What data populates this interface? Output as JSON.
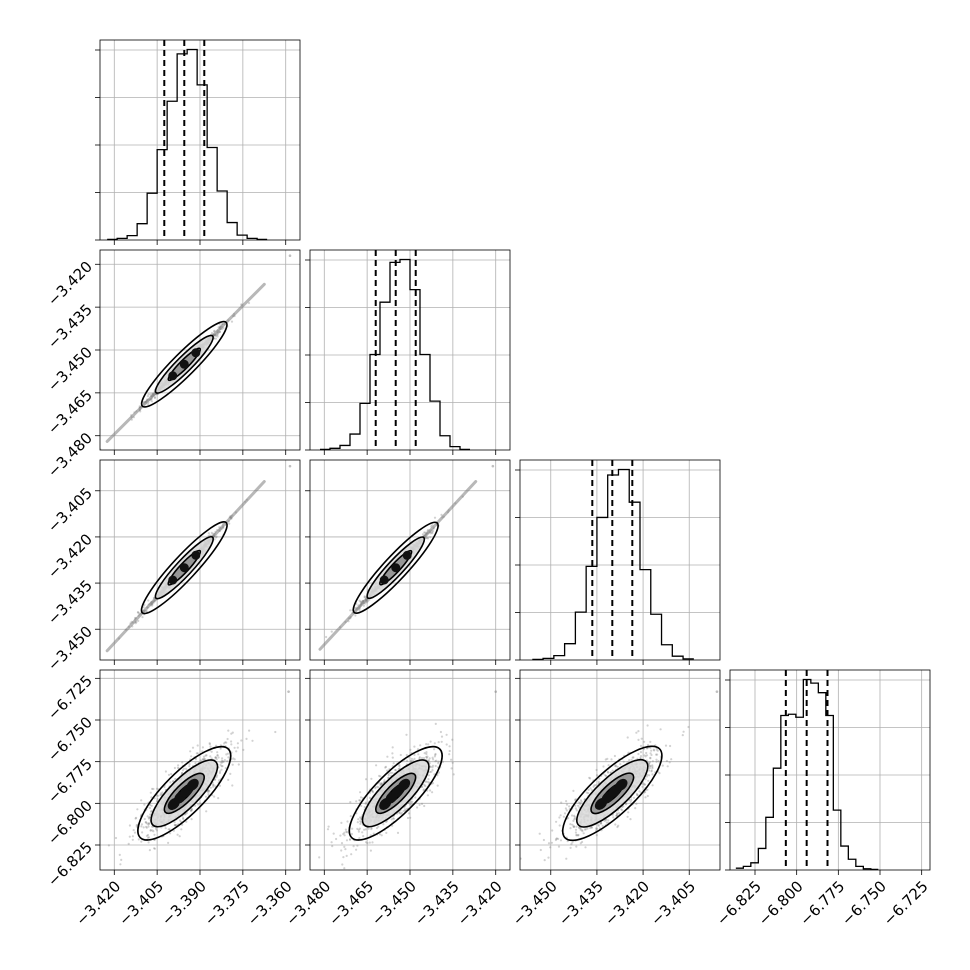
{
  "chart_data": {
    "type": "corner",
    "grid": true,
    "parameters": [
      {
        "index": 0,
        "range": [
          -3.425,
          -3.355
        ],
        "ticks": [
          -3.42,
          -3.405,
          -3.39,
          -3.375,
          -3.36
        ],
        "tick_labels": [
          "−3.420",
          "−3.405",
          "−3.390",
          "−3.375",
          "−3.360"
        ],
        "quantiles": [
          -3.4025,
          -3.3955,
          -3.3885
        ]
      },
      {
        "index": 1,
        "range": [
          -3.485,
          -3.415
        ],
        "ticks": [
          -3.48,
          -3.465,
          -3.45,
          -3.435,
          -3.42
        ],
        "tick_labels": [
          "−3.480",
          "−3.465",
          "−3.450",
          "−3.435",
          "−3.420"
        ],
        "quantiles": [
          -3.462,
          -3.455,
          -3.448
        ]
      },
      {
        "index": 2,
        "range": [
          -3.46,
          -3.395
        ],
        "ticks": [
          -3.45,
          -3.435,
          -3.42,
          -3.405
        ],
        "tick_labels": [
          "−3.450",
          "−3.435",
          "−3.420",
          "−3.405"
        ],
        "quantiles": [
          -3.4365,
          -3.43,
          -3.4235
        ]
      },
      {
        "index": 3,
        "range": [
          -6.84,
          -6.72
        ],
        "ticks": [
          -6.825,
          -6.8,
          -6.775,
          -6.75,
          -6.725
        ],
        "tick_labels": [
          "−6.825",
          "−6.800",
          "−6.775",
          "−6.750",
          "−6.725"
        ],
        "quantiles": [
          -6.8065,
          -6.794,
          -6.7815
        ]
      }
    ],
    "histograms": [
      {
        "param": 0,
        "bin_edges": [
          -3.4225,
          -3.419,
          -3.4155,
          -3.412,
          -3.4085,
          -3.405,
          -3.4015,
          -3.398,
          -3.3945,
          -3.391,
          -3.3875,
          -3.384,
          -3.3805,
          -3.377,
          -3.3735,
          -3.37,
          -3.3665
        ],
        "counts": [
          1,
          3,
          8,
          30,
          86,
          166,
          255,
          342,
          350,
          285,
          170,
          90,
          32,
          9,
          3,
          1
        ]
      },
      {
        "param": 1,
        "bin_edges": [
          -3.4815,
          -3.478,
          -3.4745,
          -3.471,
          -3.4675,
          -3.464,
          -3.4605,
          -3.457,
          -3.4535,
          -3.45,
          -3.4465,
          -3.443,
          -3.4395,
          -3.436,
          -3.4325,
          -3.429
        ],
        "counts": [
          1,
          3,
          8,
          28,
          82,
          168,
          260,
          330,
          335,
          282,
          168,
          86,
          25,
          6,
          1
        ]
      },
      {
        "param": 2,
        "bin_edges": [
          -3.456,
          -3.4525,
          -3.449,
          -3.4455,
          -3.442,
          -3.4385,
          -3.435,
          -3.4315,
          -3.428,
          -3.4245,
          -3.421,
          -3.4175,
          -3.414,
          -3.4105,
          -3.407,
          -3.4035
        ],
        "counts": [
          1,
          3,
          8,
          30,
          88,
          172,
          262,
          340,
          350,
          290,
          166,
          84,
          28,
          7,
          2
        ]
      },
      {
        "param": 3,
        "bin_edges": [
          -6.8365,
          -6.832,
          -6.8275,
          -6.823,
          -6.8185,
          -6.814,
          -6.8095,
          -6.805,
          -6.8005,
          -6.796,
          -6.7915,
          -6.787,
          -6.7825,
          -6.778,
          -6.7735,
          -6.769,
          -6.7645,
          -6.76,
          -6.7555,
          -6.751
        ],
        "counts": [
          3,
          6,
          12,
          36,
          88,
          170,
          258,
          260,
          255,
          318,
          312,
          296,
          258,
          100,
          40,
          18,
          6,
          2,
          1
        ]
      }
    ],
    "pairs": [
      {
        "x_param": 0,
        "y_param": 1,
        "center": [
          -3.3955,
          -3.455
        ],
        "sigma": [
          0.0045,
          0.0045
        ],
        "correlation": 0.998,
        "tail_start": [
          -3.4225,
          -3.482
        ],
        "tail_end": [
          -3.3675,
          -3.427
        ],
        "outlier": [
          -3.3585,
          -3.417
        ]
      },
      {
        "x_param": 0,
        "y_param": 2,
        "center": [
          -3.3955,
          -3.43
        ],
        "sigma": [
          0.0045,
          0.0045
        ],
        "correlation": 0.995,
        "tail_start": [
          -3.4225,
          -3.457
        ],
        "tail_end": [
          -3.3675,
          -3.402
        ],
        "outlier": [
          -3.3585,
          -3.397
        ]
      },
      {
        "x_param": 1,
        "y_param": 2,
        "center": [
          -3.455,
          -3.43
        ],
        "sigma": [
          0.0045,
          0.0045
        ],
        "correlation": 0.998,
        "tail_start": [
          -3.4815,
          -3.4565
        ],
        "tail_end": [
          -3.427,
          -3.402
        ],
        "outlier": [
          -3.421,
          -3.397
        ]
      },
      {
        "x_param": 0,
        "y_param": 3,
        "center": [
          -3.3955,
          -6.794
        ],
        "sigma": [
          0.0045,
          0.0085
        ],
        "correlation": 0.87,
        "tail_start": [
          -3.42,
          -6.835
        ],
        "tail_end": [
          -3.365,
          -6.74
        ],
        "outlier": [
          -3.359,
          -6.733
        ]
      },
      {
        "x_param": 1,
        "y_param": 3,
        "center": [
          -3.455,
          -6.794
        ],
        "sigma": [
          0.0045,
          0.0085
        ],
        "correlation": 0.87,
        "tail_start": [
          -3.48,
          -6.835
        ],
        "tail_end": [
          -3.425,
          -6.74
        ],
        "outlier": [
          -3.42,
          -6.733
        ]
      },
      {
        "x_param": 2,
        "y_param": 3,
        "center": [
          -3.43,
          -6.794
        ],
        "sigma": [
          0.0045,
          0.0085
        ],
        "correlation": 0.87,
        "tail_start": [
          -3.455,
          -6.835
        ],
        "tail_end": [
          -3.4,
          -6.74
        ],
        "outlier": [
          -3.396,
          -6.733
        ]
      }
    ],
    "colors": {
      "axis": "#000000",
      "grid": "#b0b0b0",
      "samples": "#7f7f7f",
      "contour_fill_outer": "#d9d9d9",
      "contour_fill_inner": "#8c8c8c",
      "center_density": "#111111"
    }
  }
}
